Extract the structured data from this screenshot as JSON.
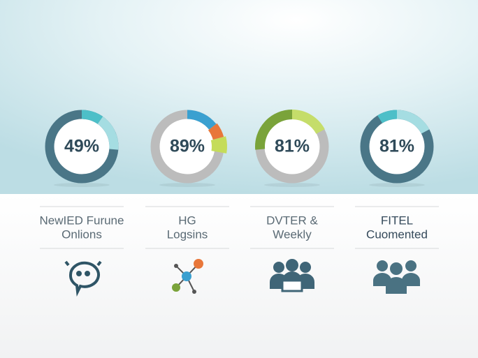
{
  "cards": [
    {
      "value": "49%",
      "label_lines": [
        "NewIED Furune",
        "Onlions"
      ]
    },
    {
      "value": "89%",
      "label_lines": [
        "HG",
        "Logsins"
      ]
    },
    {
      "value": "81%",
      "label_lines": [
        "DVTER &",
        "Weekly"
      ]
    },
    {
      "value": "81%",
      "label_lines": [
        "FITEL",
        "Cuomented"
      ]
    }
  ]
}
